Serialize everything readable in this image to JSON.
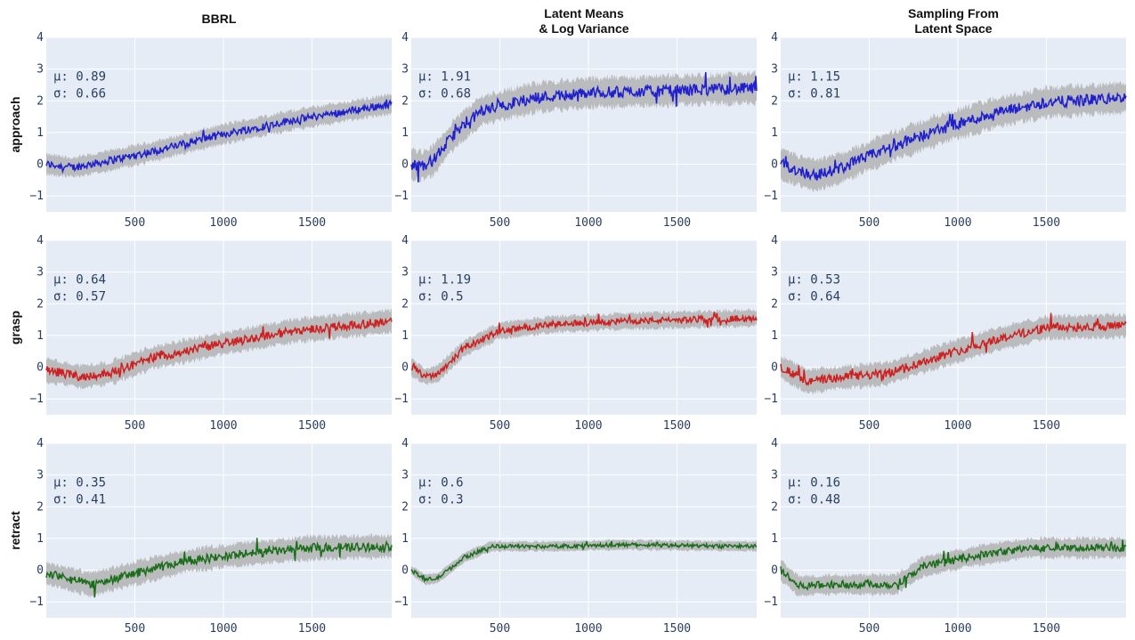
{
  "chart_data": {
    "type": "line",
    "layout": "grid",
    "columns": [
      "BBRL",
      "Latent Means\n& Log Variance",
      "Sampling From\nLatent Space"
    ],
    "rows": [
      "approach",
      "grasp",
      "retract"
    ],
    "colors": {
      "approach": "#1f1fcf",
      "grasp": "#cf1f1f",
      "retract": "#1a6e1a",
      "band": "#b3b3b3",
      "plot_bg": "#e5ecf6",
      "grid": "#ffffff"
    },
    "xlim": [
      0,
      1950
    ],
    "ylim": [
      -1.5,
      4
    ],
    "xticks": [
      500,
      1000,
      1500
    ],
    "yticks": [
      -1,
      0,
      1,
      2,
      3,
      4
    ],
    "grid": true,
    "panels": [
      {
        "row": "approach",
        "column": "BBRL",
        "mu_label": "μ: 0.89",
        "sigma_label": "σ: 0.66",
        "points": [
          [
            0,
            0
          ],
          [
            150,
            -0.1
          ],
          [
            300,
            0.05
          ],
          [
            600,
            0.4
          ],
          [
            1000,
            0.95
          ],
          [
            1400,
            1.4
          ],
          [
            1950,
            1.9
          ]
        ],
        "band_width": 0.3
      },
      {
        "row": "approach",
        "column": "Latent Means\n& Log Variance",
        "mu_label": "μ: 1.91",
        "sigma_label": "σ: 0.68",
        "points": [
          [
            0,
            0
          ],
          [
            60,
            -0.05
          ],
          [
            120,
            0.1
          ],
          [
            250,
            1.0
          ],
          [
            400,
            1.7
          ],
          [
            700,
            2.1
          ],
          [
            1000,
            2.25
          ],
          [
            1950,
            2.4
          ]
        ],
        "band_width": 0.45
      },
      {
        "row": "approach",
        "column": "Sampling From\nLatent Space",
        "mu_label": "μ: 1.15",
        "sigma_label": "σ: 0.81",
        "points": [
          [
            0,
            0
          ],
          [
            100,
            -0.2
          ],
          [
            200,
            -0.35
          ],
          [
            350,
            -0.1
          ],
          [
            600,
            0.5
          ],
          [
            900,
            1.1
          ],
          [
            1200,
            1.6
          ],
          [
            1500,
            1.95
          ],
          [
            1950,
            2.1
          ]
        ],
        "band_width": 0.45
      },
      {
        "row": "grasp",
        "column": "BBRL",
        "mu_label": "μ: 0.64",
        "sigma_label": "σ: 0.57",
        "points": [
          [
            0,
            -0.1
          ],
          [
            200,
            -0.3
          ],
          [
            350,
            -0.2
          ],
          [
            600,
            0.3
          ],
          [
            1000,
            0.75
          ],
          [
            1400,
            1.15
          ],
          [
            1950,
            1.45
          ]
        ],
        "band_width": 0.35
      },
      {
        "row": "grasp",
        "column": "Latent Means\n& Log Variance",
        "mu_label": "μ: 1.19",
        "sigma_label": "σ: 0.5",
        "points": [
          [
            0,
            0
          ],
          [
            80,
            -0.3
          ],
          [
            150,
            -0.2
          ],
          [
            300,
            0.6
          ],
          [
            500,
            1.15
          ],
          [
            800,
            1.35
          ],
          [
            1200,
            1.45
          ],
          [
            1950,
            1.55
          ]
        ],
        "band_width": 0.25
      },
      {
        "row": "grasp",
        "column": "Sampling From\nLatent Space",
        "mu_label": "μ: 0.53",
        "sigma_label": "σ: 0.64",
        "points": [
          [
            0,
            0
          ],
          [
            150,
            -0.45
          ],
          [
            300,
            -0.35
          ],
          [
            600,
            -0.2
          ],
          [
            900,
            0.35
          ],
          [
            1200,
            0.85
          ],
          [
            1500,
            1.25
          ],
          [
            1950,
            1.3
          ]
        ],
        "band_width": 0.35
      },
      {
        "row": "retract",
        "column": "BBRL",
        "mu_label": "μ: 0.35",
        "sigma_label": "σ: 0.41",
        "points": [
          [
            0,
            -0.1
          ],
          [
            250,
            -0.45
          ],
          [
            500,
            -0.1
          ],
          [
            800,
            0.3
          ],
          [
            1100,
            0.5
          ],
          [
            1500,
            0.7
          ],
          [
            1950,
            0.75
          ]
        ],
        "band_width": 0.35
      },
      {
        "row": "retract",
        "column": "Latent Means\n& Log Variance",
        "mu_label": "μ: 0.6",
        "sigma_label": "σ: 0.3",
        "points": [
          [
            0,
            0
          ],
          [
            80,
            -0.3
          ],
          [
            150,
            -0.25
          ],
          [
            300,
            0.4
          ],
          [
            450,
            0.75
          ],
          [
            800,
            0.75
          ],
          [
            1200,
            0.8
          ],
          [
            1950,
            0.75
          ]
        ],
        "band_width": 0.15
      },
      {
        "row": "retract",
        "column": "Sampling From\nLatent Space",
        "mu_label": "μ: 0.16",
        "sigma_label": "σ: 0.48",
        "points": [
          [
            0,
            0
          ],
          [
            100,
            -0.5
          ],
          [
            300,
            -0.45
          ],
          [
            500,
            -0.45
          ],
          [
            650,
            -0.45
          ],
          [
            800,
            0.1
          ],
          [
            1100,
            0.45
          ],
          [
            1400,
            0.7
          ],
          [
            1950,
            0.7
          ]
        ],
        "band_width": 0.3
      }
    ]
  }
}
